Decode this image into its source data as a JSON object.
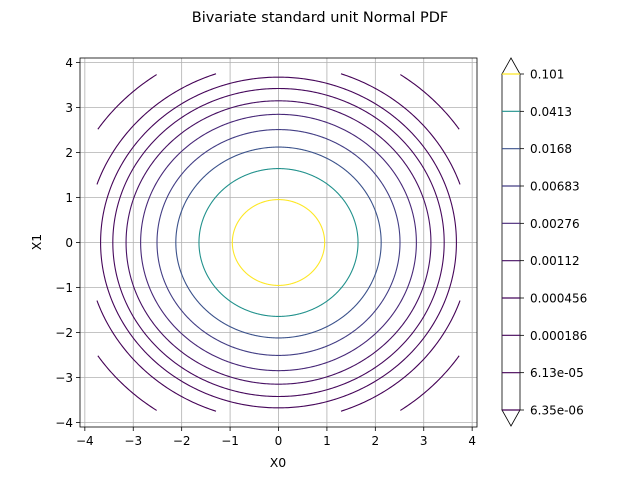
{
  "chart_data": {
    "type": "contour",
    "title": "Bivariate standard unit Normal PDF",
    "xlabel": "X0",
    "ylabel": "X1",
    "xlim": [
      -4.1,
      4.1
    ],
    "ylim": [
      -4.1,
      4.1
    ],
    "x_ticks": [
      -4,
      -3,
      -2,
      -1,
      0,
      1,
      2,
      3,
      4
    ],
    "y_ticks": [
      -4,
      -3,
      -2,
      -1,
      0,
      1,
      2,
      3,
      4
    ],
    "grid": true,
    "square_domain": [
      -3.75,
      3.75
    ],
    "colormap": "viridis",
    "colorbar_extend": "both",
    "levels": [
      {
        "label": "0.101",
        "value": 0.101,
        "color": "#fde725"
      },
      {
        "label": "0.0413",
        "value": 0.0413,
        "color": "#21918c"
      },
      {
        "label": "0.0168",
        "value": 0.0168,
        "color": "#3b528b"
      },
      {
        "label": "0.00683",
        "value": 0.00683,
        "color": "#433e85"
      },
      {
        "label": "0.00276",
        "value": 0.00276,
        "color": "#482878"
      },
      {
        "label": "0.00112",
        "value": 0.00112,
        "color": "#471063"
      },
      {
        "label": "0.000456",
        "value": 0.000456,
        "color": "#46085c"
      },
      {
        "label": "0.000186",
        "value": 0.000186,
        "color": "#450559"
      },
      {
        "label": "6.13e-05",
        "value": 6.13e-05,
        "color": "#440256"
      },
      {
        "label": "6.35e-06",
        "value": 6.35e-06,
        "color": "#440154"
      }
    ]
  }
}
